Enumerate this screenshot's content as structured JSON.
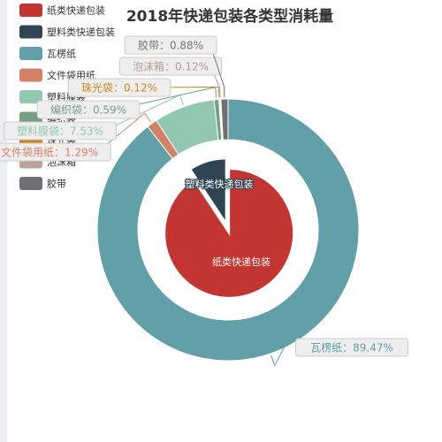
{
  "chart_data": {
    "type": "pie",
    "title": "2018年快递包装各类型消耗量",
    "legend": [
      {
        "name": "纸类快递包装",
        "color": "#c23531"
      },
      {
        "name": "塑料类快递包装",
        "color": "#2f4554"
      },
      {
        "name": "瓦楞纸",
        "color": "#61a0a8"
      },
      {
        "name": "文件袋用纸",
        "color": "#d48265"
      },
      {
        "name": "塑料膜袋",
        "color": "#91c7ae"
      },
      {
        "name": "编织袋",
        "color": "#749f83"
      },
      {
        "name": "珠光袋",
        "color": "#ca8622"
      },
      {
        "name": "泡沫箱",
        "color": "#bda29a"
      },
      {
        "name": "胶带",
        "color": "#6e7074"
      }
    ],
    "inner_series": {
      "slices": [
        {
          "name": "纸类快递包装",
          "color": "#c23531",
          "percent": 90.7
        },
        {
          "name": "塑料类快递包装",
          "color": "#2f4554",
          "percent": 9.3
        }
      ]
    },
    "outer_series": {
      "slices": [
        {
          "name": "瓦楞纸",
          "value": 89.47,
          "label": "瓦楞纸：89.47%",
          "color": "#61a0a8"
        },
        {
          "name": "文件袋用纸",
          "value": 1.29,
          "label": "文件袋用纸：1.29%",
          "color": "#d48265"
        },
        {
          "name": "塑料膜袋",
          "value": 7.53,
          "label": "塑料膜袋：7.53%",
          "color": "#91c7ae"
        },
        {
          "name": "编织袋",
          "value": 0.59,
          "label": "编织袋：0.59%",
          "color": "#749f83"
        },
        {
          "name": "珠光袋",
          "value": 0.12,
          "label": "珠光袋：0.12%",
          "color": "#ca8622"
        },
        {
          "name": "泡沫箱",
          "value": 0.12,
          "label": "泡沫箱：0.12%",
          "color": "#bda29a"
        },
        {
          "name": "胶带",
          "value": 0.88,
          "label": "胶带：0.88%",
          "color": "#6e7074"
        }
      ]
    }
  }
}
